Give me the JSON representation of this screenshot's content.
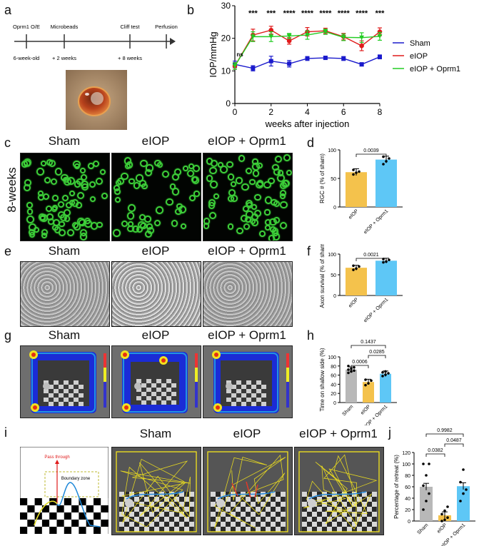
{
  "panel_letters": [
    "a",
    "b",
    "c",
    "d",
    "e",
    "f",
    "g",
    "h",
    "i",
    "j"
  ],
  "timeline": {
    "steps": [
      "Oprm1 O/E",
      "Microbeads",
      "Cliff test",
      "Perfusion"
    ],
    "times": [
      "6-week-old",
      "+ 2 weeks",
      "+ 8 weeks"
    ]
  },
  "columns": [
    "Sham",
    "eIOP",
    "eIOP + Oprm1"
  ],
  "row_label_c": "8-weeks",
  "boundary_diagram": {
    "pass_through": "Pass through",
    "boundary_zone": "Boundary zone"
  },
  "colors": {
    "sham": "#1a1acc",
    "eiop": "#e01b1b",
    "oprm1": "#22cc22",
    "bar_sham": "#b8b8b8",
    "bar_eiop": "#f4c24c",
    "bar_oprm1": "#5ec7f6",
    "rgc": "#3ed03a",
    "track": "#f4e41c"
  },
  "chart_data": [
    {
      "id": "b",
      "type": "line",
      "ylabel": "IOP/mmHg",
      "xlabel": "weeks after injection",
      "xlim": [
        0,
        8
      ],
      "ylim": [
        0,
        30
      ],
      "xticks": [
        0,
        2,
        4,
        6,
        8
      ],
      "yticks": [
        0,
        10,
        20,
        30
      ],
      "x": [
        0,
        1,
        2,
        3,
        4,
        5,
        6,
        7,
        8
      ],
      "series": [
        {
          "name": "Sham",
          "values": [
            12,
            10.8,
            13,
            12.2,
            13.8,
            14,
            13.8,
            12,
            14.3
          ],
          "err": [
            1,
            0.8,
            1.5,
            1,
            0.6,
            0.5,
            0.6,
            0.5,
            0.6
          ]
        },
        {
          "name": "eIOP",
          "values": [
            11.5,
            21,
            22.5,
            19.2,
            22,
            22.3,
            20.5,
            17.7,
            22
          ],
          "err": [
            1,
            1.8,
            1.2,
            1,
            1.3,
            0.8,
            1,
            1.5,
            1.2
          ]
        },
        {
          "name": "eIOP + Oprm1",
          "values": [
            11.5,
            20.5,
            20.5,
            20.7,
            21,
            22,
            20.3,
            20.2,
            20.6
          ],
          "err": [
            1,
            1.5,
            1.5,
            0.8,
            1.3,
            0.8,
            1,
            1.5,
            1.2
          ]
        }
      ],
      "annotations": [
        "ns",
        "***",
        "***",
        "****",
        "****",
        "****",
        "****",
        "****",
        "***"
      ]
    },
    {
      "id": "d",
      "type": "bar",
      "ylabel": "RGC # (% of sham)",
      "categories": [
        "eIOP",
        "eIOP + Oprm1"
      ],
      "values": [
        61,
        83
      ],
      "points": [
        [
          57,
          60,
          62,
          65
        ],
        [
          75,
          80,
          85,
          88
        ]
      ],
      "ylim": [
        0,
        100
      ],
      "yticks": [
        0,
        50,
        100
      ],
      "pvalues": [
        "0.0039"
      ]
    },
    {
      "id": "f",
      "type": "bar",
      "ylabel": "Axon survival (% of sham)",
      "categories": [
        "eIOP",
        "eIOP + Oprm1"
      ],
      "values": [
        67,
        84
      ],
      "points": [
        [
          62,
          65,
          70,
          72
        ],
        [
          80,
          82,
          86,
          88
        ]
      ],
      "ylim": [
        0,
        100
      ],
      "yticks": [
        0,
        50,
        100
      ],
      "pvalues": [
        "0.0021"
      ]
    },
    {
      "id": "h",
      "type": "bar",
      "ylabel": "Time on shallow side (%)",
      "categories": [
        "Sham",
        "eIOP",
        "eIOP + Oprm1"
      ],
      "values": [
        72,
        45,
        63
      ],
      "points": [
        [
          65,
          68,
          70,
          72,
          74,
          77,
          80
        ],
        [
          38,
          42,
          48,
          50
        ],
        [
          58,
          61,
          64,
          66,
          68
        ]
      ],
      "ylim": [
        0,
        100
      ],
      "yticks": [
        0,
        20,
        40,
        60,
        80,
        100
      ],
      "pvalues": [
        "0.0006",
        "0.0285",
        "0.1437"
      ]
    },
    {
      "id": "j",
      "type": "bar",
      "ylabel": "Percentage of retreat (%)",
      "categories": [
        "Sham",
        "eIOP",
        "eIOP + Oprm1"
      ],
      "values": [
        60,
        10,
        61
      ],
      "points": [
        [
          20,
          35,
          48,
          62,
          80,
          100,
          100
        ],
        [
          0,
          2,
          6,
          12,
          18,
          25
        ],
        [
          35,
          48,
          55,
          68,
          90
        ]
      ],
      "ylim": [
        0,
        120
      ],
      "yticks": [
        0,
        20,
        40,
        60,
        80,
        100,
        120
      ],
      "pvalues": [
        "0.0382",
        "0.0487",
        "0.9982"
      ]
    }
  ]
}
